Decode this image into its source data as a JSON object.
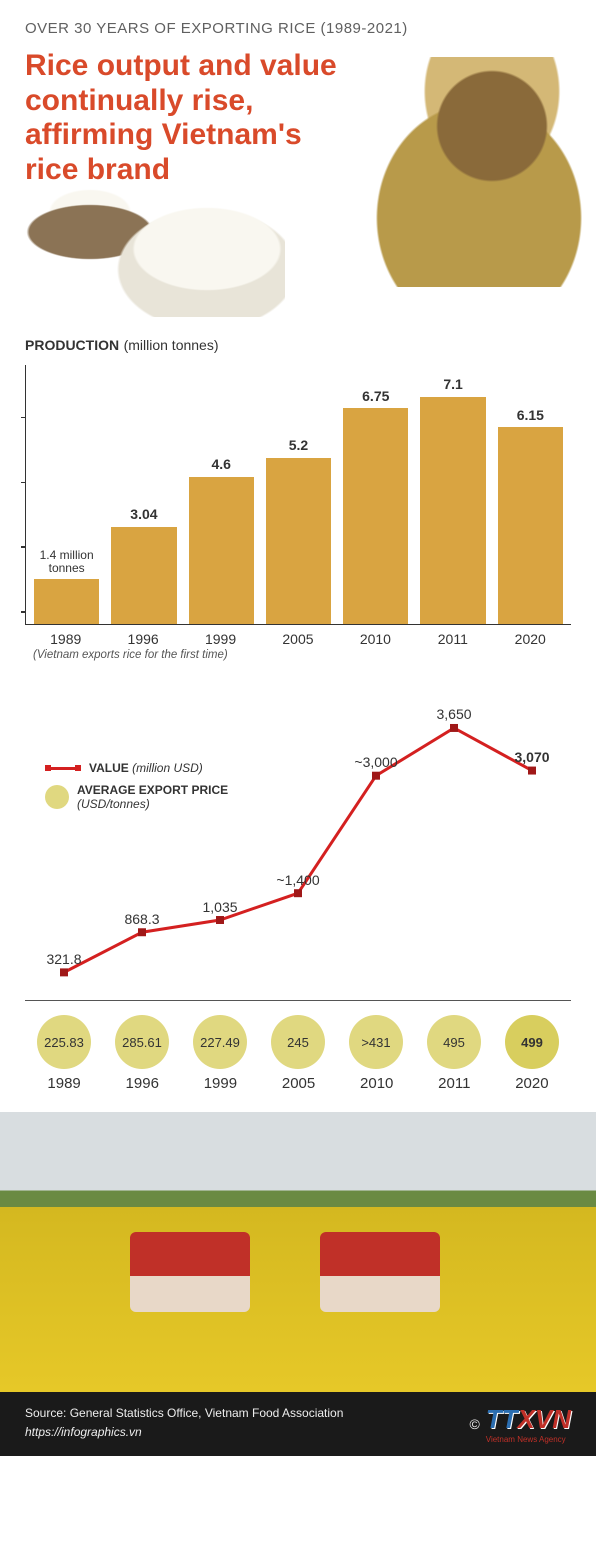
{
  "header": {
    "overline": "OVER 30 YEARS OF EXPORTING RICE (1989-2021)",
    "title": "Rice output and value continually rise, affirming Vietnam's rice brand",
    "title_color": "#d94a2a"
  },
  "production_chart": {
    "type": "bar",
    "label_prefix": "PRODUCTION",
    "label_unit": "(million tonnes)",
    "max_value": 7.5,
    "bar_color": "#d9a441",
    "first_label": "1.4 million tonnes",
    "bars": [
      {
        "year": "1989",
        "value": 1.4,
        "label": "",
        "is_first": true
      },
      {
        "year": "1996",
        "value": 3.04,
        "label": "3.04"
      },
      {
        "year": "1999",
        "value": 4.6,
        "label": "4.6"
      },
      {
        "year": "2005",
        "value": 5.2,
        "label": "5.2"
      },
      {
        "year": "2010",
        "value": 6.75,
        "label": "6.75"
      },
      {
        "year": "2011",
        "value": 7.1,
        "label": "7.1"
      },
      {
        "year": "2020",
        "value": 6.15,
        "label": "6.15",
        "is_last": true
      }
    ],
    "footnote": "(Vietnam exports rice for the first time)",
    "tick_positions_pct": [
      95,
      70,
      45,
      20
    ]
  },
  "value_chart": {
    "type": "line",
    "legend_value": "VALUE",
    "legend_value_unit": "(million USD)",
    "legend_price": "AVERAGE EXPORT PRICE",
    "legend_price_unit": "(USD/tonnes)",
    "line_color": "#d42020",
    "marker_color": "#a01818",
    "circle_color": "#e0d880",
    "circle_bold_color": "#d8ce5e",
    "max_value": 3800,
    "points": [
      {
        "year": "1989",
        "value": 321.8,
        "label": "321.8",
        "price": "225.83"
      },
      {
        "year": "1996",
        "value": 868.3,
        "label": "868.3",
        "price": "285.61"
      },
      {
        "year": "1999",
        "value": 1035,
        "label": "1,035",
        "price": "227.49"
      },
      {
        "year": "2005",
        "value": 1400,
        "label": "~1,400",
        "price": "245"
      },
      {
        "year": "2010",
        "value": 3000,
        "label": "~3,000",
        "price": ">431"
      },
      {
        "year": "2011",
        "value": 3650,
        "label": "3,650",
        "price": "495"
      },
      {
        "year": "2020",
        "value": 3070,
        "label": "3,070",
        "price": "499",
        "is_last": true
      }
    ]
  },
  "footer": {
    "source": "Source: General Statistics Office, Vietnam Food Association",
    "url": "https://infographics.vn",
    "copyright": "©",
    "logo_tt": "TT",
    "logo_xvn": "XVN",
    "logo_sub": "Vietnam News Agency"
  }
}
